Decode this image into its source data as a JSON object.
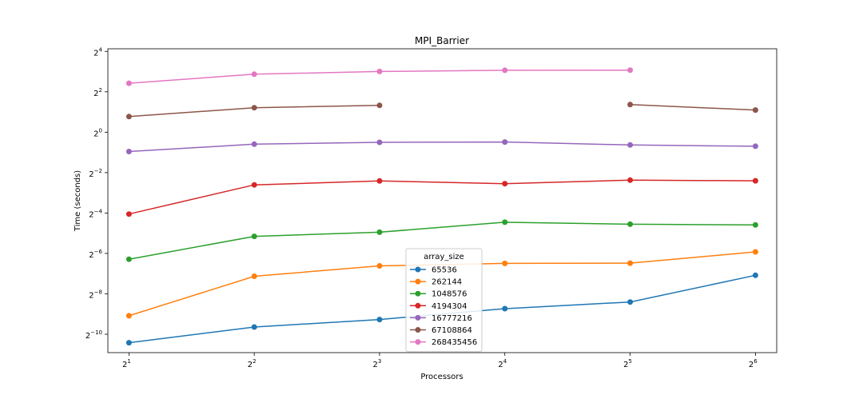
{
  "chart_data": {
    "type": "line",
    "title": "MPI_Barrier",
    "xlabel": "Processors",
    "ylabel": "Time (seconds)",
    "xscale": "log2",
    "yscale": "log2",
    "x_ticks": [
      {
        "value": 2,
        "base": "2",
        "exp": "1"
      },
      {
        "value": 4,
        "base": "2",
        "exp": "2"
      },
      {
        "value": 8,
        "base": "2",
        "exp": "3"
      },
      {
        "value": 16,
        "base": "2",
        "exp": "4"
      },
      {
        "value": 32,
        "base": "2",
        "exp": "5"
      },
      {
        "value": 64,
        "base": "2",
        "exp": "6"
      }
    ],
    "y_ticks": [
      {
        "value": 0.0009765625,
        "base": "2",
        "exp": "−10"
      },
      {
        "value": 0.00390625,
        "base": "2",
        "exp": "−8"
      },
      {
        "value": 0.015625,
        "base": "2",
        "exp": "−6"
      },
      {
        "value": 0.0625,
        "base": "2",
        "exp": "−4"
      },
      {
        "value": 0.25,
        "base": "2",
        "exp": "−2"
      },
      {
        "value": 1,
        "base": "2",
        "exp": "0"
      },
      {
        "value": 4,
        "base": "2",
        "exp": "2"
      },
      {
        "value": 16,
        "base": "2",
        "exp": "4"
      }
    ],
    "xlim": [
      1.78,
      72
    ],
    "ylim": [
      0.00052,
      17.5
    ],
    "grid": false,
    "legend": {
      "title": "array_size",
      "placement": "lower-center"
    },
    "x": [
      2,
      4,
      8,
      16,
      32,
      64
    ],
    "series": [
      {
        "name": "65536",
        "color": "#1f77b4",
        "values": [
          0.00073,
          0.00125,
          0.00162,
          0.00235,
          0.00295,
          0.00738
        ]
      },
      {
        "name": "262144",
        "color": "#ff7f0e",
        "values": [
          0.00184,
          0.00715,
          0.0102,
          0.0111,
          0.0112,
          0.0165
        ]
      },
      {
        "name": "1048576",
        "color": "#2ca02c",
        "values": [
          0.0128,
          0.0281,
          0.0324,
          0.0456,
          0.0426,
          0.0415
        ]
      },
      {
        "name": "4194304",
        "color": "#d62728",
        "values": [
          0.0604,
          0.164,
          0.188,
          0.171,
          0.193,
          0.189
        ]
      },
      {
        "name": "16777216",
        "color": "#9467bd",
        "values": [
          0.516,
          0.663,
          0.707,
          0.714,
          0.645,
          0.618
        ]
      },
      {
        "name": "67108864",
        "color": "#8c564b",
        "values": [
          1.71,
          2.32,
          2.51,
          null,
          2.58,
          2.14
        ]
      },
      {
        "name": "268435456",
        "color": "#e377c2",
        "values": [
          5.37,
          7.32,
          8.03,
          8.37,
          8.42,
          null
        ]
      }
    ]
  }
}
